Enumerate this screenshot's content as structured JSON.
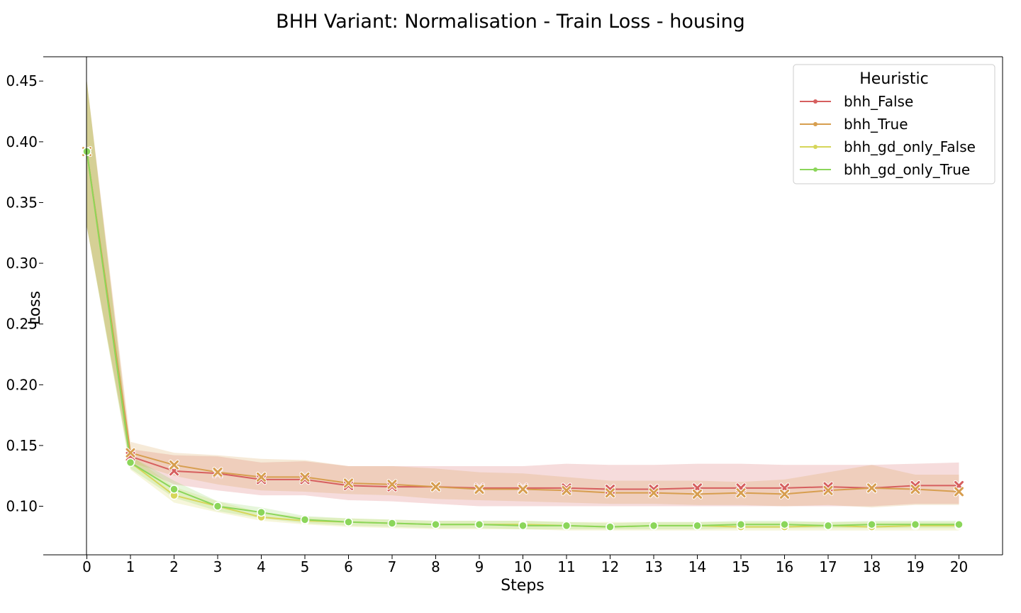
{
  "chart_data": {
    "type": "line",
    "title": "BHH Variant: Normalisation - Train Loss - housing",
    "xlabel": "Steps",
    "ylabel": "Loss",
    "xlim": [
      -1,
      21
    ],
    "ylim": [
      0.06,
      0.47
    ],
    "x": [
      0,
      1,
      2,
      3,
      4,
      5,
      6,
      7,
      8,
      9,
      10,
      11,
      12,
      13,
      14,
      15,
      16,
      17,
      18,
      19,
      20
    ],
    "y_ticks": [
      "0.10",
      "0.15",
      "0.20",
      "0.25",
      "0.30",
      "0.35",
      "0.40",
      "0.45"
    ],
    "x_ticks": [
      "0",
      "1",
      "2",
      "3",
      "4",
      "5",
      "6",
      "7",
      "8",
      "9",
      "10",
      "11",
      "12",
      "13",
      "14",
      "15",
      "16",
      "17",
      "18",
      "19",
      "20"
    ],
    "grid": false,
    "legend": {
      "title": "Heuristic",
      "position": "top-right"
    },
    "series": [
      {
        "name": "bhh_False",
        "color": "#d65f5f",
        "marker": "x",
        "values": [
          0.392,
          0.141,
          0.129,
          0.127,
          0.122,
          0.122,
          0.117,
          0.116,
          0.116,
          0.115,
          0.115,
          0.115,
          0.114,
          0.114,
          0.115,
          0.115,
          0.115,
          0.116,
          0.115,
          0.117,
          0.117
        ],
        "lower": [
          0.33,
          0.134,
          0.118,
          0.113,
          0.109,
          0.109,
          0.105,
          0.104,
          0.102,
          0.1,
          0.1,
          0.1,
          0.1,
          0.1,
          0.1,
          0.1,
          0.1,
          0.1,
          0.1,
          0.102,
          0.102
        ],
        "upper": [
          0.45,
          0.147,
          0.142,
          0.141,
          0.136,
          0.137,
          0.133,
          0.133,
          0.133,
          0.133,
          0.133,
          0.135,
          0.134,
          0.134,
          0.135,
          0.135,
          0.134,
          0.134,
          0.134,
          0.135,
          0.136
        ]
      },
      {
        "name": "bhh_True",
        "color": "#d79e4f",
        "marker": "x",
        "values": [
          0.392,
          0.144,
          0.134,
          0.128,
          0.124,
          0.124,
          0.119,
          0.118,
          0.116,
          0.114,
          0.114,
          0.113,
          0.111,
          0.111,
          0.11,
          0.111,
          0.11,
          0.113,
          0.115,
          0.114,
          0.112
        ],
        "lower": [
          0.33,
          0.136,
          0.125,
          0.118,
          0.113,
          0.112,
          0.11,
          0.109,
          0.106,
          0.105,
          0.104,
          0.103,
          0.102,
          0.102,
          0.101,
          0.101,
          0.1,
          0.101,
          0.099,
          0.101,
          0.101
        ],
        "upper": [
          0.45,
          0.153,
          0.144,
          0.142,
          0.139,
          0.138,
          0.133,
          0.133,
          0.131,
          0.128,
          0.127,
          0.124,
          0.121,
          0.121,
          0.121,
          0.12,
          0.122,
          0.128,
          0.134,
          0.126,
          0.126
        ]
      },
      {
        "name": "bhh_gd_only_False",
        "color": "#d6d65a",
        "marker": "o",
        "values": [
          0.392,
          0.136,
          0.109,
          0.1,
          0.091,
          0.088,
          0.087,
          0.086,
          0.085,
          0.085,
          0.085,
          0.084,
          0.083,
          0.084,
          0.084,
          0.083,
          0.083,
          0.084,
          0.083,
          0.084,
          0.084
        ],
        "lower": [
          0.33,
          0.13,
          0.103,
          0.095,
          0.088,
          0.085,
          0.083,
          0.082,
          0.081,
          0.081,
          0.081,
          0.08,
          0.08,
          0.08,
          0.08,
          0.08,
          0.08,
          0.08,
          0.08,
          0.08,
          0.08
        ],
        "upper": [
          0.45,
          0.142,
          0.116,
          0.104,
          0.095,
          0.091,
          0.09,
          0.089,
          0.088,
          0.088,
          0.088,
          0.087,
          0.087,
          0.087,
          0.087,
          0.087,
          0.087,
          0.087,
          0.087,
          0.087,
          0.087
        ]
      },
      {
        "name": "bhh_gd_only_True",
        "color": "#8bd65a",
        "marker": "o",
        "values": [
          0.392,
          0.136,
          0.114,
          0.1,
          0.095,
          0.089,
          0.087,
          0.086,
          0.085,
          0.085,
          0.084,
          0.084,
          0.083,
          0.084,
          0.084,
          0.085,
          0.085,
          0.084,
          0.085,
          0.085,
          0.085
        ],
        "lower": [
          0.33,
          0.131,
          0.107,
          0.096,
          0.09,
          0.086,
          0.084,
          0.083,
          0.082,
          0.082,
          0.081,
          0.081,
          0.081,
          0.081,
          0.081,
          0.082,
          0.082,
          0.082,
          0.082,
          0.082,
          0.082
        ],
        "upper": [
          0.45,
          0.141,
          0.121,
          0.104,
          0.099,
          0.092,
          0.09,
          0.089,
          0.088,
          0.088,
          0.088,
          0.087,
          0.086,
          0.087,
          0.087,
          0.088,
          0.088,
          0.087,
          0.088,
          0.088,
          0.088
        ]
      }
    ]
  }
}
